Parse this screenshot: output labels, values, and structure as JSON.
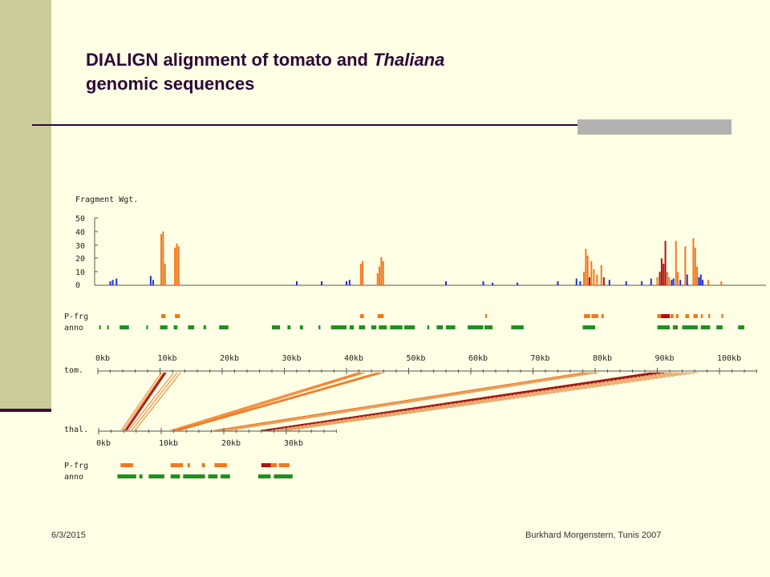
{
  "slide": {
    "title_prefix": "DIALIGN alignment of tomato and ",
    "title_italic": "Thaliana",
    "title_line2": "genomic sequences",
    "date": "6/3/2015",
    "credit": "Burkhard Morgenstern, Tunis 2007"
  },
  "colors": {
    "blue": "#2030d0",
    "orange": "#f07820",
    "darkred": "#b01010",
    "green": "#209020",
    "line_dark": "#a01818",
    "line_light": "#e8a060"
  },
  "figure": {
    "weight_label": "Fragment Wgt.",
    "weight_ticks": [
      "50",
      "40",
      "30",
      "20",
      "10",
      "0"
    ],
    "pfrg_label": "P-frg",
    "anno_label": "anno",
    "tom_label": "tom.",
    "thal_label": "thal.",
    "tom_axis": [
      "0kb",
      "10kb",
      "20kb",
      "30kb",
      "40kb",
      "50kb",
      "60kb",
      "70kb",
      "80kb",
      "90kb",
      "100kb"
    ],
    "thal_axis": [
      "0kb",
      "10kb",
      "20kb",
      "30kb"
    ],
    "weight_bars": [
      {
        "kb": 2.0,
        "w": 3,
        "c": "blue"
      },
      {
        "kb": 2.4,
        "w": 4,
        "c": "blue"
      },
      {
        "kb": 3.0,
        "w": 5,
        "c": "blue"
      },
      {
        "kb": 8.5,
        "w": 7,
        "c": "blue"
      },
      {
        "kb": 8.9,
        "w": 4,
        "c": "blue"
      },
      {
        "kb": 10.2,
        "w": 38,
        "c": "orange"
      },
      {
        "kb": 10.5,
        "w": 40,
        "c": "orange"
      },
      {
        "kb": 10.8,
        "w": 16,
        "c": "orange"
      },
      {
        "kb": 12.4,
        "w": 28,
        "c": "orange"
      },
      {
        "kb": 12.7,
        "w": 31,
        "c": "orange"
      },
      {
        "kb": 13.0,
        "w": 29,
        "c": "orange"
      },
      {
        "kb": 32.0,
        "w": 3,
        "c": "blue"
      },
      {
        "kb": 36.0,
        "w": 3,
        "c": "blue"
      },
      {
        "kb": 40.0,
        "w": 3,
        "c": "blue"
      },
      {
        "kb": 40.5,
        "w": 4,
        "c": "blue"
      },
      {
        "kb": 42.3,
        "w": 16,
        "c": "orange"
      },
      {
        "kb": 42.6,
        "w": 18,
        "c": "orange"
      },
      {
        "kb": 45.0,
        "w": 9,
        "c": "orange"
      },
      {
        "kb": 45.3,
        "w": 14,
        "c": "orange"
      },
      {
        "kb": 45.6,
        "w": 21,
        "c": "orange"
      },
      {
        "kb": 45.9,
        "w": 18,
        "c": "orange"
      },
      {
        "kb": 56.0,
        "w": 3,
        "c": "blue"
      },
      {
        "kb": 62.0,
        "w": 3,
        "c": "blue"
      },
      {
        "kb": 63.5,
        "w": 2,
        "c": "blue"
      },
      {
        "kb": 67.5,
        "w": 2,
        "c": "blue"
      },
      {
        "kb": 74.0,
        "w": 3,
        "c": "blue"
      },
      {
        "kb": 77.0,
        "w": 5,
        "c": "blue"
      },
      {
        "kb": 77.6,
        "w": 3,
        "c": "blue"
      },
      {
        "kb": 78.2,
        "w": 10,
        "c": "orange"
      },
      {
        "kb": 78.5,
        "w": 27,
        "c": "orange"
      },
      {
        "kb": 78.8,
        "w": 22,
        "c": "orange"
      },
      {
        "kb": 79.1,
        "w": 6,
        "c": "darkred"
      },
      {
        "kb": 79.4,
        "w": 18,
        "c": "orange"
      },
      {
        "kb": 79.8,
        "w": 12,
        "c": "orange"
      },
      {
        "kb": 80.3,
        "w": 8,
        "c": "orange"
      },
      {
        "kb": 81.0,
        "w": 15,
        "c": "orange"
      },
      {
        "kb": 81.4,
        "w": 6,
        "c": "darkred"
      },
      {
        "kb": 82.3,
        "w": 4,
        "c": "blue"
      },
      {
        "kb": 85.0,
        "w": 3,
        "c": "blue"
      },
      {
        "kb": 87.5,
        "w": 3,
        "c": "blue"
      },
      {
        "kb": 89.0,
        "w": 5,
        "c": "blue"
      },
      {
        "kb": 90.0,
        "w": 6,
        "c": "orange"
      },
      {
        "kb": 90.4,
        "w": 10,
        "c": "darkred"
      },
      {
        "kb": 90.7,
        "w": 20,
        "c": "darkred"
      },
      {
        "kb": 91.0,
        "w": 16,
        "c": "darkred"
      },
      {
        "kb": 91.3,
        "w": 33,
        "c": "darkred"
      },
      {
        "kb": 91.6,
        "w": 10,
        "c": "orange"
      },
      {
        "kb": 91.9,
        "w": 6,
        "c": "orange"
      },
      {
        "kb": 92.3,
        "w": 4,
        "c": "blue"
      },
      {
        "kb": 92.6,
        "w": 5,
        "c": "blue"
      },
      {
        "kb": 93.0,
        "w": 33,
        "c": "orange"
      },
      {
        "kb": 93.3,
        "w": 10,
        "c": "orange"
      },
      {
        "kb": 93.7,
        "w": 4,
        "c": "blue"
      },
      {
        "kb": 94.5,
        "w": 29,
        "c": "orange"
      },
      {
        "kb": 94.8,
        "w": 8,
        "c": "blue"
      },
      {
        "kb": 95.8,
        "w": 35,
        "c": "orange"
      },
      {
        "kb": 96.1,
        "w": 28,
        "c": "orange"
      },
      {
        "kb": 96.4,
        "w": 14,
        "c": "orange"
      },
      {
        "kb": 96.7,
        "w": 6,
        "c": "blue"
      },
      {
        "kb": 97.0,
        "w": 8,
        "c": "blue"
      },
      {
        "kb": 97.3,
        "w": 4,
        "c": "blue"
      },
      {
        "kb": 98.2,
        "w": 4,
        "c": "orange"
      },
      {
        "kb": 100.3,
        "w": 3,
        "c": "orange"
      }
    ],
    "tom_pfrg": [
      {
        "a": 10.2,
        "b": 10.9,
        "c": "orange"
      },
      {
        "a": 12.4,
        "b": 13.2,
        "c": "orange"
      },
      {
        "a": 42.2,
        "b": 42.8,
        "c": "orange"
      },
      {
        "a": 45.0,
        "b": 46.0,
        "c": "orange"
      },
      {
        "a": 62.3,
        "b": 62.6,
        "c": "orange"
      },
      {
        "a": 78.2,
        "b": 79.2,
        "c": "orange"
      },
      {
        "a": 79.4,
        "b": 80.5,
        "c": "orange"
      },
      {
        "a": 81.0,
        "b": 81.4,
        "c": "orange"
      },
      {
        "a": 90.0,
        "b": 90.6,
        "c": "orange"
      },
      {
        "a": 90.6,
        "b": 92.0,
        "c": "darkred"
      },
      {
        "a": 92.1,
        "b": 92.6,
        "c": "orange"
      },
      {
        "a": 93.0,
        "b": 93.4,
        "c": "orange"
      },
      {
        "a": 94.5,
        "b": 95.1,
        "c": "orange"
      },
      {
        "a": 95.8,
        "b": 96.5,
        "c": "orange"
      },
      {
        "a": 97.0,
        "b": 97.3,
        "c": "orange"
      },
      {
        "a": 98.2,
        "b": 98.5,
        "c": "orange"
      },
      {
        "a": 100.3,
        "b": 100.6,
        "c": "orange"
      }
    ],
    "tom_anno": [
      {
        "a": 0.2,
        "b": 0.4
      },
      {
        "a": 1.5,
        "b": 1.7
      },
      {
        "a": 3.5,
        "b": 5.0
      },
      {
        "a": 7.8,
        "b": 8.0
      },
      {
        "a": 10.0,
        "b": 11.2
      },
      {
        "a": 12.2,
        "b": 12.8
      },
      {
        "a": 14.5,
        "b": 15.5
      },
      {
        "a": 17.0,
        "b": 17.4
      },
      {
        "a": 19.5,
        "b": 21.0
      },
      {
        "a": 28.0,
        "b": 29.3
      },
      {
        "a": 30.5,
        "b": 31.0
      },
      {
        "a": 32.5,
        "b": 33.0
      },
      {
        "a": 35.5,
        "b": 35.8
      },
      {
        "a": 37.5,
        "b": 40.0
      },
      {
        "a": 40.5,
        "b": 41.2
      },
      {
        "a": 42.0,
        "b": 43.0
      },
      {
        "a": 44.0,
        "b": 44.8
      },
      {
        "a": 45.2,
        "b": 46.5
      },
      {
        "a": 47.0,
        "b": 49.0
      },
      {
        "a": 49.3,
        "b": 51.0
      },
      {
        "a": 53.0,
        "b": 53.3
      },
      {
        "a": 54.5,
        "b": 55.5
      },
      {
        "a": 56.0,
        "b": 57.5
      },
      {
        "a": 59.5,
        "b": 62.0
      },
      {
        "a": 62.2,
        "b": 63.5
      },
      {
        "a": 66.5,
        "b": 68.5
      },
      {
        "a": 78.0,
        "b": 80.0
      },
      {
        "a": 90.0,
        "b": 92.0
      },
      {
        "a": 92.5,
        "b": 93.3
      },
      {
        "a": 94.0,
        "b": 96.5
      },
      {
        "a": 97.0,
        "b": 98.5
      },
      {
        "a": 99.5,
        "b": 100.5
      },
      {
        "a": 103.0,
        "b": 104.0
      }
    ],
    "thal_pfrg": [
      {
        "a": 3.5,
        "b": 5.5,
        "c": "orange"
      },
      {
        "a": 11.5,
        "b": 13.5,
        "c": "orange"
      },
      {
        "a": 14.2,
        "b": 14.6,
        "c": "orange"
      },
      {
        "a": 16.5,
        "b": 17.0,
        "c": "orange"
      },
      {
        "a": 18.5,
        "b": 20.5,
        "c": "orange"
      },
      {
        "a": 26.0,
        "b": 27.5,
        "c": "darkred"
      },
      {
        "a": 27.5,
        "b": 28.5,
        "c": "orange"
      },
      {
        "a": 28.8,
        "b": 30.5,
        "c": "orange"
      }
    ],
    "thal_anno": [
      {
        "a": 3.0,
        "b": 6.0
      },
      {
        "a": 6.5,
        "b": 7.0
      },
      {
        "a": 8.0,
        "b": 10.5
      },
      {
        "a": 11.5,
        "b": 13.0
      },
      {
        "a": 13.5,
        "b": 17.0
      },
      {
        "a": 17.5,
        "b": 19.0
      },
      {
        "a": 19.5,
        "b": 21.0
      },
      {
        "a": 25.5,
        "b": 27.5
      },
      {
        "a": 28.0,
        "b": 31.0
      }
    ],
    "alignments": [
      {
        "t1": 10.2,
        "t2": 10.9,
        "h1": 3.6,
        "h2": 4.2,
        "c": "orange",
        "style": "solid"
      },
      {
        "t1": 10.7,
        "t2": 11.0,
        "h1": 4.2,
        "h2": 4.5,
        "c": "line_dark",
        "style": "solid"
      },
      {
        "t1": 12.2,
        "t2": 13.3,
        "h1": 4.8,
        "h2": 5.8,
        "c": "orange",
        "style": "solid"
      },
      {
        "t1": 41.9,
        "t2": 42.9,
        "h1": 11.5,
        "h2": 12.6,
        "c": "orange",
        "style": "solid"
      },
      {
        "t1": 45.0,
        "t2": 45.9,
        "h1": 12.3,
        "h2": 13.0,
        "c": "orange",
        "style": "solid"
      },
      {
        "t1": 78.0,
        "t2": 78.7,
        "h1": 18.5,
        "h2": 19.5,
        "c": "orange",
        "style": "solid"
      },
      {
        "t1": 78.7,
        "t2": 80.5,
        "h1": 19.5,
        "h2": 21.0,
        "c": "line_light",
        "style": "solid"
      },
      {
        "t1": 89.0,
        "t2": 91.5,
        "h1": 26.0,
        "h2": 27.5,
        "c": "line_dark",
        "style": "solid"
      },
      {
        "t1": 91.5,
        "t2": 93.0,
        "h1": 27.5,
        "h2": 28.5,
        "c": "line_light",
        "style": "dashed"
      },
      {
        "t1": 93.0,
        "t2": 96.5,
        "h1": 28.5,
        "h2": 30.5,
        "c": "line_light",
        "style": "dashed"
      }
    ]
  }
}
